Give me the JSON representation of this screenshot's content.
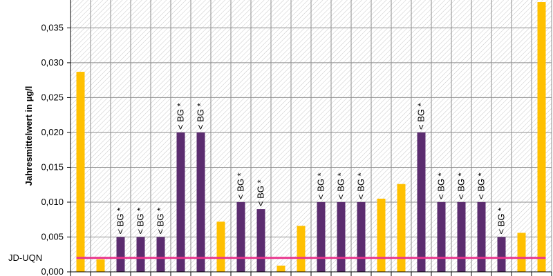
{
  "chart_data": {
    "type": "bar",
    "title": "",
    "xlabel": "",
    "ylabel": "Jahresmittelwert in µg/l",
    "ylim": [
      0,
      0.039
    ],
    "yticks": [
      0,
      0.005,
      0.01,
      0.015,
      0.02,
      0.025,
      0.03,
      0.035
    ],
    "ytick_labels": [
      "0,000",
      "0,005",
      "0,010",
      "0,015",
      "0,020",
      "0,025",
      "0,030",
      "0,035"
    ],
    "grid": true,
    "categories": [
      "",
      "",
      "",
      "",
      "",
      "",
      "",
      "",
      "",
      "",
      "",
      "",
      "",
      "",
      "",
      "",
      "",
      "",
      "",
      "",
      "",
      "",
      "",
      ""
    ],
    "values": [
      0.0287,
      0.0018,
      0.005,
      0.005,
      0.005,
      0.02,
      0.02,
      0.0072,
      0.01,
      0.009,
      0.0009,
      0.0066,
      0.01,
      0.01,
      0.01,
      0.0105,
      0.0126,
      0.02,
      0.01,
      0.01,
      0.01,
      0.005,
      0.0056,
      0.0387
    ],
    "bar_kinds": [
      "measured",
      "measured",
      "below_bg",
      "below_bg",
      "below_bg",
      "below_bg",
      "below_bg",
      "measured",
      "below_bg",
      "below_bg",
      "measured",
      "measured",
      "below_bg",
      "below_bg",
      "below_bg",
      "measured",
      "measured",
      "below_bg",
      "below_bg",
      "below_bg",
      "below_bg",
      "below_bg",
      "measured",
      "measured"
    ],
    "bar_labels": [
      "",
      "",
      "< BG *",
      "< BG *",
      "< BG *",
      "< BG *",
      "< BG *",
      "",
      "< BG *",
      "< BG *",
      "",
      "",
      "< BG *",
      "< BG *",
      "< BG *",
      "",
      "",
      "< BG *",
      "< BG *",
      "< BG *",
      "< BG *",
      "< BG *",
      "",
      ""
    ],
    "reference_line": {
      "label": "JD-UQN",
      "value": 0.002
    },
    "colors": {
      "measured": "#FFC000",
      "below_bg": "#5B2C6F",
      "reference": "#E8348C",
      "grid": "#8C8C8C",
      "hatch": "#C8C8C8"
    }
  }
}
